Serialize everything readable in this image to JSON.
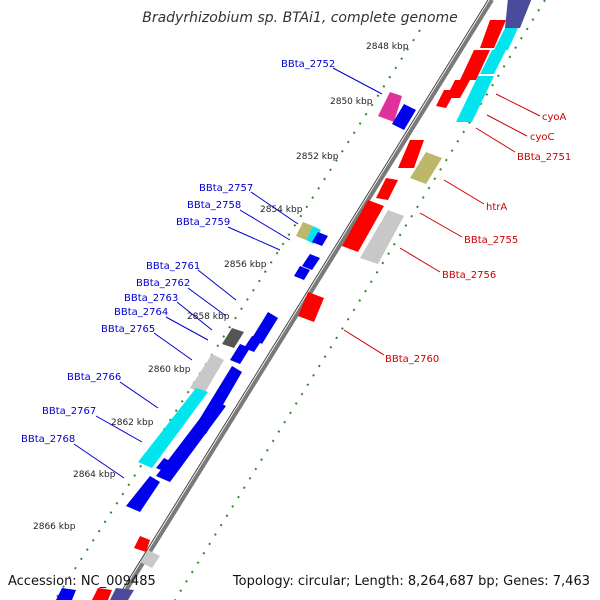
{
  "title": "Bradyrhizobium sp. BTAi1, complete genome",
  "footer": {
    "accession": "Accession: NC_009485",
    "summary": "Topology: circular; Length: 8,264,687 bp; Genes: 7,463"
  },
  "colors": {
    "backbone": "#7a7a7a",
    "tick": "#2e8b2e",
    "label_minus": "#0000cc",
    "label_plus": "#cc0000",
    "red": "#ff0000",
    "blue": "#0000ee",
    "cyan": "#00e5ee",
    "gray": "#c8c8c8",
    "darkgray": "#555555",
    "khaki": "#bdb76b",
    "magenta": "#e0309a",
    "navy": "#4b4b9b"
  },
  "scale": {
    "ticks": [
      "2848 kbp",
      "2850 kbp",
      "2852 kbp",
      "2854 kbp",
      "2856 kbp",
      "2858 kbp",
      "2860 kbp",
      "2862 kbp",
      "2864 kbp",
      "2866 kbp"
    ]
  },
  "genes_plus": [
    {
      "name": "cyoA",
      "color": "red",
      "kbp": 2848.9
    },
    {
      "name": "cyoC",
      "color": "red",
      "kbp": 2849.3
    },
    {
      "name": "BBta_2751",
      "color": "cyan",
      "kbp": 2849.6
    },
    {
      "name": "htrA",
      "color": "khaki",
      "kbp": 2852.1
    },
    {
      "name": "BBta_2755",
      "color": "red",
      "kbp": 2853.6
    },
    {
      "name": "BBta_2756",
      "color": "gray",
      "kbp": 2854.5
    },
    {
      "name": "BBta_2760",
      "color": "red",
      "kbp": 2857.4
    }
  ],
  "genes_minus": [
    {
      "name": "BBta_2752",
      "color": "magenta",
      "kbp": 2850.2
    },
    {
      "name": "BBta_2757",
      "color": "khaki",
      "kbp": 2854.4
    },
    {
      "name": "BBta_2758",
      "color": "cyan",
      "kbp": 2854.8
    },
    {
      "name": "BBta_2759",
      "color": "blue",
      "kbp": 2855.3
    },
    {
      "name": "BBta_2761",
      "color": "blue",
      "kbp": 2856.5
    },
    {
      "name": "BBta_2762",
      "color": "darkgray",
      "kbp": 2857.3
    },
    {
      "name": "BBta_2763",
      "color": "blue",
      "kbp": 2857.7
    },
    {
      "name": "BBta_2764",
      "color": "blue",
      "kbp": 2858.3
    },
    {
      "name": "BBta_2765",
      "color": "blue",
      "kbp": 2859.0
    },
    {
      "name": "BBta_2766",
      "color": "cyan",
      "kbp": 2861.0
    },
    {
      "name": "BBta_2767",
      "color": "blue",
      "kbp": 2861.8
    },
    {
      "name": "BBta_2768",
      "color": "blue",
      "kbp": 2863.2
    }
  ]
}
